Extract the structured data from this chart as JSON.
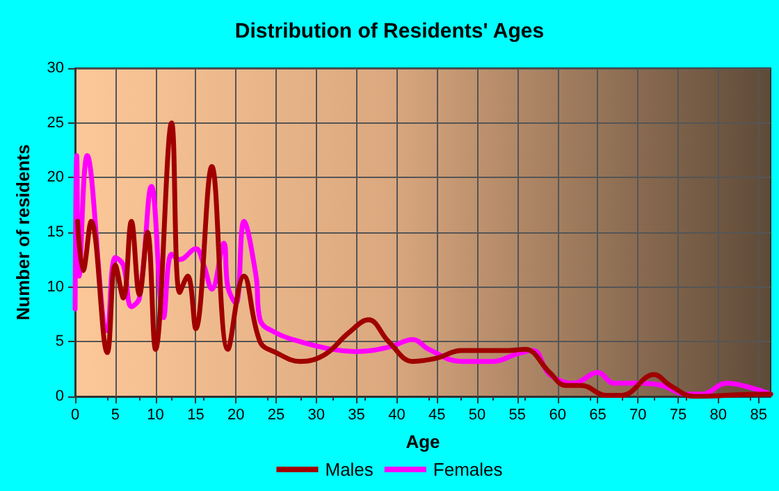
{
  "chart_data": {
    "type": "line",
    "title": "Distribution of Residents' Ages",
    "xlabel": "Age",
    "ylabel": "Number of residents",
    "xlim": [
      0,
      86.5
    ],
    "xticks": [
      0,
      5,
      10,
      15,
      20,
      25,
      30,
      35,
      40,
      45,
      50,
      55,
      60,
      65,
      70,
      75,
      80,
      85
    ],
    "ylim": [
      0,
      30
    ],
    "yticks": [
      0,
      5,
      10,
      15,
      20,
      25,
      30
    ],
    "grid": true,
    "legend": "bottom",
    "marker": "none",
    "line_style": "solid",
    "series": [
      {
        "name": "Males",
        "color": "#a00000",
        "x": [
          0.3,
          1,
          2,
          4,
          5,
          6,
          7,
          8,
          9,
          10,
          12,
          13,
          14,
          15,
          17,
          19,
          21,
          23,
          25,
          28,
          31,
          34,
          36.5,
          39,
          42,
          45,
          48,
          54,
          56,
          59,
          61,
          63,
          66,
          68,
          72,
          74,
          77,
          85,
          86.5
        ],
        "values": [
          16,
          11.5,
          16,
          4,
          12,
          9,
          16,
          9.3,
          15,
          4.3,
          25,
          9.5,
          11,
          6.2,
          21,
          4.3,
          11,
          5,
          4,
          3.2,
          3.8,
          5.8,
          7,
          5,
          3.2,
          3.5,
          4.2,
          4.2,
          4.3,
          2.2,
          1,
          1,
          0.1,
          0.1,
          2,
          1,
          0,
          0.2,
          0.2
        ]
      },
      {
        "name": "Females",
        "color": "#ff00ff",
        "x": [
          0,
          0.2,
          0.5,
          1.5,
          4,
          5,
          6,
          7,
          8,
          9.5,
          11,
          12,
          13,
          15,
          16,
          17,
          18.5,
          19,
          20,
          21,
          22.5,
          23,
          25,
          28,
          32,
          35,
          39,
          42,
          44,
          48,
          52,
          55,
          57,
          59,
          62,
          65,
          67,
          70,
          73,
          76,
          78,
          81,
          84,
          86.5
        ],
        "values": [
          8,
          22,
          11,
          22,
          6,
          12.7,
          12,
          8.2,
          9,
          19.2,
          7.2,
          13,
          12.5,
          13.5,
          12,
          9.8,
          14,
          10,
          8.5,
          16,
          11,
          7,
          5.8,
          5,
          4.3,
          4.1,
          4.5,
          5.2,
          4.3,
          3.2,
          3.2,
          3.9,
          4.2,
          2,
          1.2,
          2.2,
          1.2,
          1.2,
          1,
          0.2,
          0.2,
          1.2,
          0.8,
          0.2
        ]
      }
    ]
  }
}
